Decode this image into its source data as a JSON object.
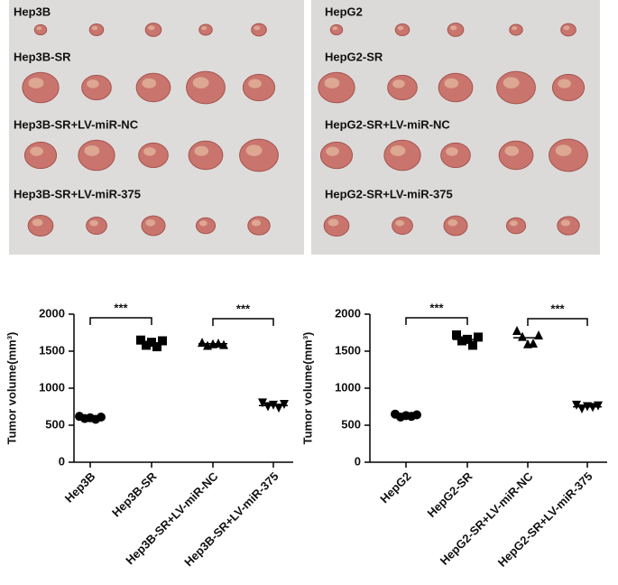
{
  "photos": [
    {
      "labels": [
        "Hep3B",
        "Hep3B-SR",
        "Hep3B-SR+LV-miR-NC",
        "Hep3B-SR+LV-miR-375"
      ]
    },
    {
      "labels": [
        "HepG2",
        "HepG2-SR",
        "HepG2-SR+LV-miR-NC",
        "HepG2-SR+LV-miR-375"
      ]
    }
  ],
  "chart_data": [
    {
      "type": "dot",
      "ylabel": "Tumor volume(mm³)",
      "categories": [
        "Hep3B",
        "Hep3B-SR",
        "Hep3B-SR+LV-miR-NC",
        "Hep3B-SR+LV-miR-375"
      ],
      "values": [
        [
          620,
          590,
          600,
          580,
          610
        ],
        [
          1650,
          1580,
          1620,
          1560,
          1640
        ],
        [
          1620,
          1580,
          1600,
          1610,
          1590
        ],
        [
          800,
          750,
          770,
          730,
          780
        ]
      ],
      "markers": [
        "circle",
        "square",
        "triangle-up",
        "triangle-down"
      ],
      "color": "#000000",
      "ylim": [
        0,
        2000
      ],
      "yticks": [
        0,
        500,
        1000,
        1500,
        2000
      ],
      "annotations": [
        {
          "between": [
            "Hep3B",
            "Hep3B-SR"
          ],
          "text": "***"
        },
        {
          "between": [
            "Hep3B-SR+LV-miR-NC",
            "Hep3B-SR+LV-miR-375"
          ],
          "text": "***"
        }
      ]
    },
    {
      "type": "dot",
      "ylabel": "Tumor volume(mm³)",
      "categories": [
        "HepG2",
        "HepG2-SR",
        "HepG2-SR+LV-miR-NC",
        "HepG2-SR+LV-miR-375"
      ],
      "values": [
        [
          650,
          610,
          630,
          620,
          640
        ],
        [
          1720,
          1640,
          1660,
          1580,
          1690
        ],
        [
          1780,
          1700,
          1600,
          1610,
          1720
        ],
        [
          770,
          720,
          750,
          740,
          760
        ]
      ],
      "markers": [
        "circle",
        "square",
        "triangle-up",
        "triangle-down"
      ],
      "color": "#000000",
      "ylim": [
        0,
        2000
      ],
      "yticks": [
        0,
        500,
        1000,
        1500,
        2000
      ],
      "annotations": [
        {
          "between": [
            "HepG2",
            "HepG2-SR"
          ],
          "text": "***"
        },
        {
          "between": [
            "HepG2-SR+LV-miR-NC",
            "HepG2-SR+LV-miR-375"
          ],
          "text": "***"
        }
      ]
    }
  ]
}
